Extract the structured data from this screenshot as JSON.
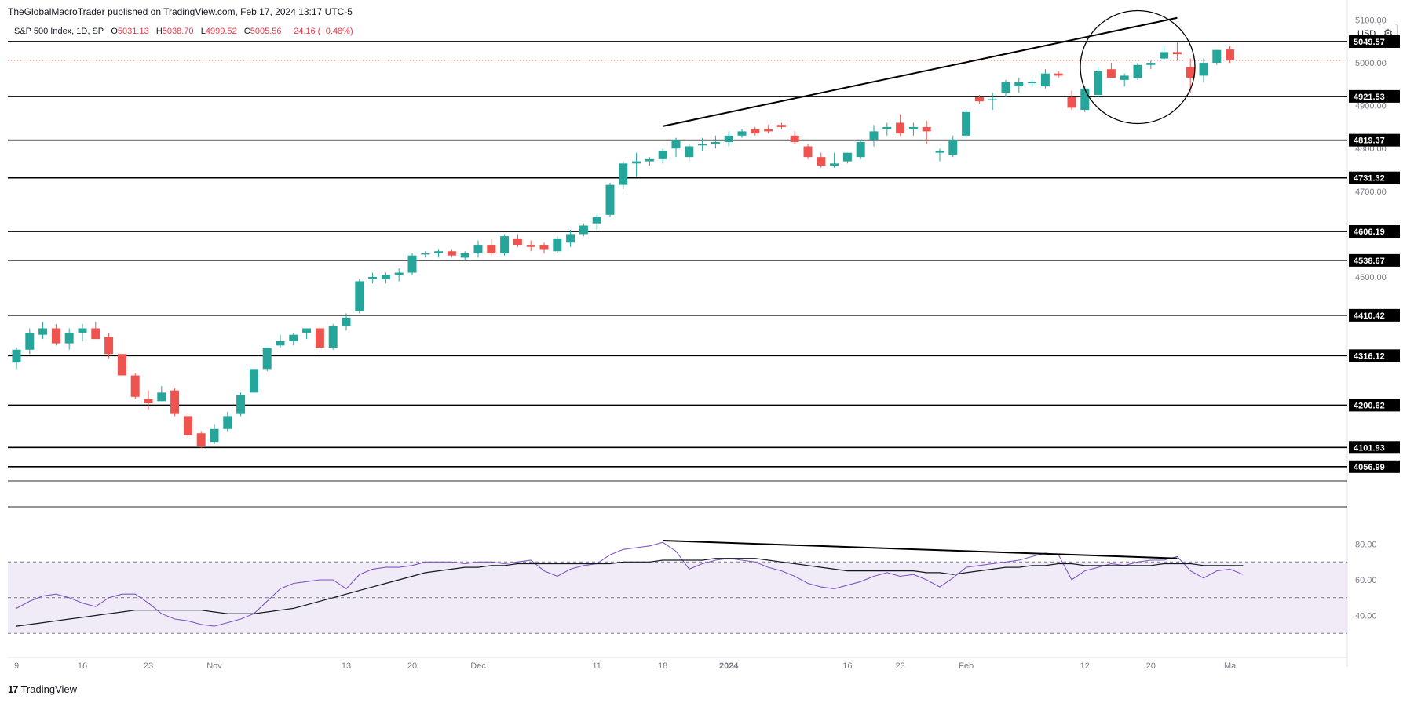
{
  "header": {
    "attribution": "TheGlobalMacroTrader published on TradingView.com, Feb 17, 2024 13:17 UTC-5"
  },
  "legend": {
    "symbol": "S&P 500 Index, 1D, SP",
    "o_label": "O",
    "o_value": "5031.13",
    "h_label": "H",
    "h_value": "5038.70",
    "l_label": "L",
    "l_value": "4999.52",
    "c_label": "C",
    "c_value": "5005.56",
    "change": "−24.16 (−0.48%)"
  },
  "currency": "USD",
  "gear_icon": "settings-gear-icon",
  "footer": {
    "logo_mark": "17",
    "logo_text": "TradingView"
  },
  "colors": {
    "up": "#26a69a",
    "down": "#ef5350",
    "rsi": "#7e57c2",
    "rsi_ma": "#131722",
    "band": "#ede7f6",
    "line": "#000000"
  },
  "chart_data": [
    {
      "type": "candlestick",
      "title": "S&P 500 Index, 1D, SP",
      "ylim": [
        4020,
        5110
      ],
      "y_ticks": [
        4500,
        4600,
        4700,
        4800,
        4900,
        5000,
        5100
      ],
      "y_tick_labels": [
        "4500.00",
        "4600.00",
        "4700.00",
        "4800.00",
        "4900.00",
        "5000.00",
        "5100.00"
      ],
      "x_ticks": [
        "9",
        "16",
        "23",
        "Nov",
        "13",
        "20",
        "Dec",
        "11",
        "18",
        "2024",
        "16",
        "23",
        "Feb",
        "12",
        "20",
        "Ma"
      ],
      "x_tick_slots": [
        0,
        5,
        10,
        15,
        25,
        30,
        35,
        44,
        49,
        54,
        63,
        67,
        72,
        81,
        86,
        92
      ],
      "candles": [
        [
          4300,
          4335,
          4285,
          4330
        ],
        [
          4330,
          4380,
          4320,
          4370
        ],
        [
          4365,
          4395,
          4355,
          4380
        ],
        [
          4380,
          4390,
          4340,
          4345
        ],
        [
          4345,
          4380,
          4330,
          4370
        ],
        [
          4370,
          4390,
          4350,
          4380
        ],
        [
          4380,
          4395,
          4360,
          4355
        ],
        [
          4360,
          4370,
          4310,
          4320
        ],
        [
          4320,
          4325,
          4280,
          4270
        ],
        [
          4270,
          4275,
          4215,
          4220
        ],
        [
          4215,
          4235,
          4190,
          4205
        ],
        [
          4210,
          4245,
          4210,
          4230
        ],
        [
          4235,
          4240,
          4175,
          4180
        ],
        [
          4175,
          4180,
          4125,
          4130
        ],
        [
          4135,
          4140,
          4100,
          4105
        ],
        [
          4115,
          4155,
          4110,
          4145
        ],
        [
          4145,
          4185,
          4140,
          4175
        ],
        [
          4180,
          4230,
          4175,
          4225
        ],
        [
          4230,
          4285,
          4230,
          4285
        ],
        [
          4285,
          4335,
          4280,
          4335
        ],
        [
          4340,
          4365,
          4335,
          4350
        ],
        [
          4350,
          4370,
          4340,
          4365
        ],
        [
          4370,
          4380,
          4355,
          4380
        ],
        [
          4380,
          4385,
          4325,
          4335
        ],
        [
          4335,
          4390,
          4330,
          4385
        ],
        [
          4385,
          4415,
          4375,
          4405
        ],
        [
          4420,
          4495,
          4415,
          4490
        ],
        [
          4495,
          4510,
          4485,
          4500
        ],
        [
          4495,
          4510,
          4485,
          4505
        ],
        [
          4505,
          4520,
          4490,
          4510
        ],
        [
          4510,
          4555,
          4505,
          4550
        ],
        [
          4555,
          4560,
          4545,
          4555
        ],
        [
          4555,
          4565,
          4545,
          4560
        ],
        [
          4560,
          4565,
          4545,
          4550
        ],
        [
          4545,
          4560,
          4540,
          4555
        ],
        [
          4555,
          4585,
          4545,
          4575
        ],
        [
          4575,
          4590,
          4550,
          4555
        ],
        [
          4555,
          4600,
          4550,
          4595
        ],
        [
          4590,
          4600,
          4570,
          4575
        ],
        [
          4575,
          4585,
          4560,
          4570
        ],
        [
          4575,
          4580,
          4555,
          4565
        ],
        [
          4560,
          4595,
          4555,
          4590
        ],
        [
          4580,
          4610,
          4570,
          4600
        ],
        [
          4600,
          4625,
          4595,
          4620
        ],
        [
          4625,
          4645,
          4610,
          4640
        ],
        [
          4645,
          4720,
          4640,
          4715
        ],
        [
          4715,
          4770,
          4705,
          4765
        ],
        [
          4765,
          4790,
          4735,
          4770
        ],
        [
          4770,
          4780,
          4760,
          4775
        ],
        [
          4775,
          4800,
          4765,
          4795
        ],
        [
          4800,
          4825,
          4780,
          4820
        ],
        [
          4780,
          4810,
          4770,
          4805
        ],
        [
          4810,
          4825,
          4795,
          4810
        ],
        [
          4810,
          4830,
          4800,
          4815
        ],
        [
          4815,
          4840,
          4805,
          4830
        ],
        [
          4830,
          4845,
          4825,
          4840
        ],
        [
          4845,
          4850,
          4830,
          4835
        ],
        [
          4845,
          4855,
          4835,
          4840
        ],
        [
          4855,
          4860,
          4845,
          4850
        ],
        [
          4830,
          4840,
          4810,
          4815
        ],
        [
          4805,
          4810,
          4775,
          4780
        ],
        [
          4780,
          4790,
          4755,
          4760
        ],
        [
          4760,
          4790,
          4755,
          4765
        ],
        [
          4770,
          4790,
          4765,
          4790
        ],
        [
          4780,
          4820,
          4775,
          4815
        ],
        [
          4820,
          4855,
          4805,
          4840
        ],
        [
          4845,
          4860,
          4830,
          4850
        ],
        [
          4860,
          4880,
          4830,
          4835
        ],
        [
          4845,
          4860,
          4830,
          4850
        ],
        [
          4850,
          4865,
          4810,
          4840
        ],
        [
          4790,
          4800,
          4770,
          4795
        ],
        [
          4785,
          4830,
          4780,
          4820
        ],
        [
          4830,
          4890,
          4825,
          4885
        ],
        [
          4920,
          4925,
          4905,
          4910
        ],
        [
          4915,
          4930,
          4890,
          4915
        ],
        [
          4930,
          4960,
          4920,
          4955
        ],
        [
          4945,
          4965,
          4930,
          4955
        ],
        [
          4955,
          4960,
          4945,
          4955
        ],
        [
          4945,
          4985,
          4940,
          4975
        ],
        [
          4975,
          4980,
          4965,
          4970
        ],
        [
          4920,
          4935,
          4890,
          4895
        ],
        [
          4890,
          4945,
          4885,
          4940
        ],
        [
          4925,
          4990,
          4920,
          4980
        ],
        [
          4985,
          5000,
          4970,
          4965
        ],
        [
          4960,
          4975,
          4945,
          4970
        ],
        [
          4965,
          5000,
          4960,
          4995
        ],
        [
          4995,
          5005,
          4985,
          5000
        ],
        [
          5010,
          5040,
          5005,
          5025
        ],
        [
          5025,
          5048,
          5005,
          5020
        ],
        [
          4990,
          5010,
          4930,
          4965
        ],
        [
          4970,
          5010,
          4955,
          5000
        ],
        [
          5000,
          5030,
          4995,
          5030
        ],
        [
          5031.13,
          5038.7,
          4999.52,
          5005.56
        ]
      ],
      "horizontal_levels": [
        "5049.57",
        "4921.53",
        "4819.37",
        "4731.32",
        "4606.19",
        "4538.67",
        "4410.42",
        "4316.12",
        "4200.62",
        "4101.93",
        "4056.99"
      ],
      "last_price_line": 5005.56,
      "trendline": {
        "from": [
          49,
          4852
        ],
        "to": [
          88,
          5105
        ]
      },
      "circle_center": [
        85,
        4990
      ]
    },
    {
      "type": "line",
      "title": "RSI",
      "ylim": [
        20,
        100
      ],
      "y_ticks": [
        40,
        60,
        80
      ],
      "y_tick_labels": [
        "40.00",
        "60.00",
        "80.00"
      ],
      "band": [
        30,
        70
      ],
      "midline": 50,
      "series": [
        {
          "values": [
            44,
            48,
            51,
            52,
            50,
            47,
            45,
            50,
            52,
            52,
            47,
            41,
            38,
            37,
            35,
            34,
            36,
            38,
            41,
            48,
            55,
            58,
            59,
            60,
            60,
            55,
            63,
            66,
            67,
            67,
            68,
            70,
            70,
            70,
            69,
            70,
            70,
            69,
            70,
            71,
            65,
            62,
            66,
            68,
            69,
            74,
            77,
            78,
            79,
            81,
            76,
            66,
            69,
            71,
            72,
            71,
            70,
            67,
            65,
            62,
            58,
            56,
            55,
            57,
            59,
            62,
            64,
            62,
            63,
            60,
            56,
            61,
            67,
            68,
            69,
            70,
            71,
            73,
            75,
            74,
            60,
            65,
            67,
            69,
            68,
            70,
            71,
            71,
            73,
            65,
            61,
            65,
            66,
            63
          ]
        },
        {
          "values": [
            34,
            35,
            36,
            37,
            38,
            39,
            40,
            41,
            42,
            43,
            43,
            43,
            43,
            43,
            43,
            42,
            41,
            41,
            41,
            42,
            43,
            44,
            46,
            48,
            50,
            52,
            54,
            56,
            58,
            60,
            62,
            64,
            65,
            66,
            67,
            67,
            68,
            68,
            69,
            69,
            69,
            69,
            69,
            69,
            69,
            69,
            70,
            70,
            70,
            71,
            71,
            71,
            71,
            72,
            72,
            72,
            72,
            71,
            70,
            69,
            68,
            67,
            66,
            65,
            65,
            65,
            65,
            65,
            65,
            64,
            64,
            63,
            64,
            65,
            66,
            67,
            67,
            68,
            68,
            69,
            69,
            68,
            68,
            68,
            68,
            68,
            68,
            69,
            69,
            69,
            68,
            68,
            68,
            68
          ]
        }
      ],
      "trendline": {
        "from": [
          49,
          82
        ],
        "to": [
          88,
          72
        ]
      }
    }
  ]
}
